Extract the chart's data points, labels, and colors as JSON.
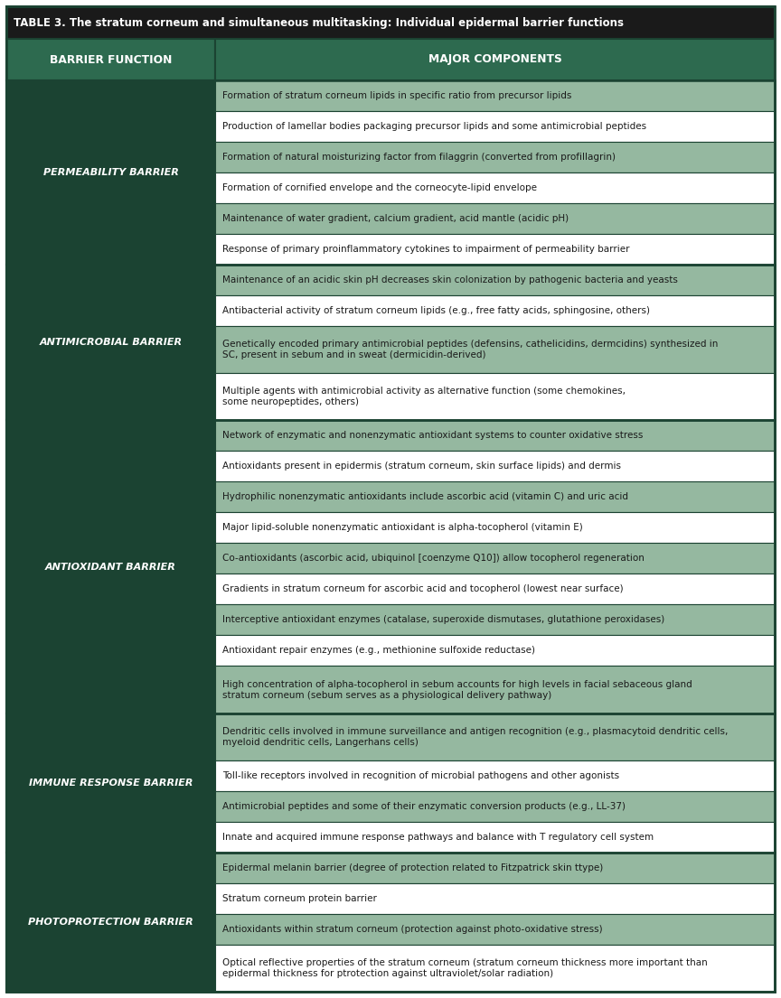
{
  "title": "TABLE 3. The stratum corneum and simultaneous multitasking: Individual epidermal barrier functions",
  "col1_header": "BARRIER FUNCTION",
  "col2_header": "MAJOR COMPONENTS",
  "sections": [
    {
      "name": "PERMEABILITY BARRIER",
      "items": [
        {
          "text": "Formation of stratum corneum lipids in specific ratio from precursor lipids",
          "lines": 1
        },
        {
          "text": "Production of lamellar bodies packaging precursor lipids and some antimicrobial peptides",
          "lines": 1
        },
        {
          "text": "Formation of natural moisturizing factor from filaggrin (converted from profillagrin)",
          "lines": 1
        },
        {
          "text": "Formation of cornified envelope and the corneocyte-lipid envelope",
          "lines": 1
        },
        {
          "text": "Maintenance of water gradient, calcium gradient, acid mantle (acidic pH)",
          "lines": 1
        },
        {
          "text": "Response of primary proinflammatory cytokines to impairment of permeability barrier",
          "lines": 1
        }
      ]
    },
    {
      "name": "ANTIMICROBIAL BARRIER",
      "items": [
        {
          "text": "Maintenance of an acidic skin pH decreases skin colonization by pathogenic bacteria and yeasts",
          "lines": 1
        },
        {
          "text": "Antibacterial activity of stratum corneum lipids (e.g., free fatty acids, sphingosine, others)",
          "lines": 1
        },
        {
          "text": "Genetically encoded primary antimicrobial peptides (defensins, cathelicidins, dermcidins) synthesized in\nSC, present in sebum and in sweat (dermicidin-derived)",
          "lines": 2
        },
        {
          "text": "Multiple agents with antimicrobial activity as alternative function (some chemokines,\nsome neuropeptides, others)",
          "lines": 2
        }
      ]
    },
    {
      "name": "ANTIOXIDANT BARRIER",
      "items": [
        {
          "text": "Network of enzymatic and nonenzymatic antioxidant systems to counter oxidative stress",
          "lines": 1
        },
        {
          "text": "Antioxidants present in epidermis (stratum corneum, skin surface lipids) and dermis",
          "lines": 1
        },
        {
          "text": "Hydrophilic nonenzymatic antioxidants include ascorbic acid (vitamin C) and uric acid",
          "lines": 1
        },
        {
          "text": "Major lipid-soluble nonenzymatic antioxidant is alpha-tocopherol (vitamin E)",
          "lines": 1
        },
        {
          "text": "Co-antioxidants (ascorbic acid, ubiquinol [coenzyme Q10]) allow tocopherol regeneration",
          "lines": 1
        },
        {
          "text": "Gradients in stratum corneum for ascorbic acid and tocopherol (lowest near surface)",
          "lines": 1
        },
        {
          "text": "Interceptive antioxidant enzymes (catalase, superoxide dismutases, glutathione peroxidases)",
          "lines": 1
        },
        {
          "text": "Antioxidant repair enzymes (e.g., methionine sulfoxide reductase)",
          "lines": 1
        },
        {
          "text": "High concentration of alpha-tocopherol in sebum accounts for high levels in facial sebaceous gland\nstratum corneum (sebum serves as a physiological delivery pathway)",
          "lines": 2
        }
      ]
    },
    {
      "name": "IMMUNE RESPONSE BARRIER",
      "items": [
        {
          "text": "Dendritic cells involved in immune surveillance and antigen recognition (e.g., plasmacytoid dendritic cells,\nmyeloid dendritic cells, Langerhans cells)",
          "lines": 2
        },
        {
          "text": "Toll-like receptors involved in recognition of microbial pathogens and other agonists",
          "lines": 1
        },
        {
          "text": "Antimicrobial peptides and some of their enzymatic conversion products (e.g., LL-37)",
          "lines": 1
        },
        {
          "text": "Innate and acquired immune response pathways and balance with T regulatory cell system",
          "lines": 1
        }
      ]
    },
    {
      "name": "PHOTOPROTECTION BARRIER",
      "items": [
        {
          "text": "Epidermal melanin barrier (degree of protection related to Fitzpatrick skin ttype)",
          "lines": 1
        },
        {
          "text": "Stratum corneum protein barrier",
          "lines": 1
        },
        {
          "text": "Antioxidants within stratum corneum (protection against photo-oxidative stress)",
          "lines": 1
        },
        {
          "text": "Optical reflective properties of the stratum corneum (stratum corneum thickness more important than\nepidermal thickness for ptrotection against ultraviolet/solar radiation)",
          "lines": 2
        }
      ]
    }
  ],
  "dark_green": "#1b4332",
  "medium_green": "#2d6a4f",
  "light_green_row": "#95b8a0",
  "white_row": "#ffffff",
  "border_color": "#1b4332",
  "title_bg": "#1a1a1a",
  "title_color": "#ffffff",
  "header_color": "#ffffff",
  "section_text_color": "#ffffff",
  "item_text_color": "#1a1a1a",
  "title_fontsize": 8.5,
  "header_fontsize": 8.8,
  "section_fontsize": 8.0,
  "item_fontsize": 7.5
}
